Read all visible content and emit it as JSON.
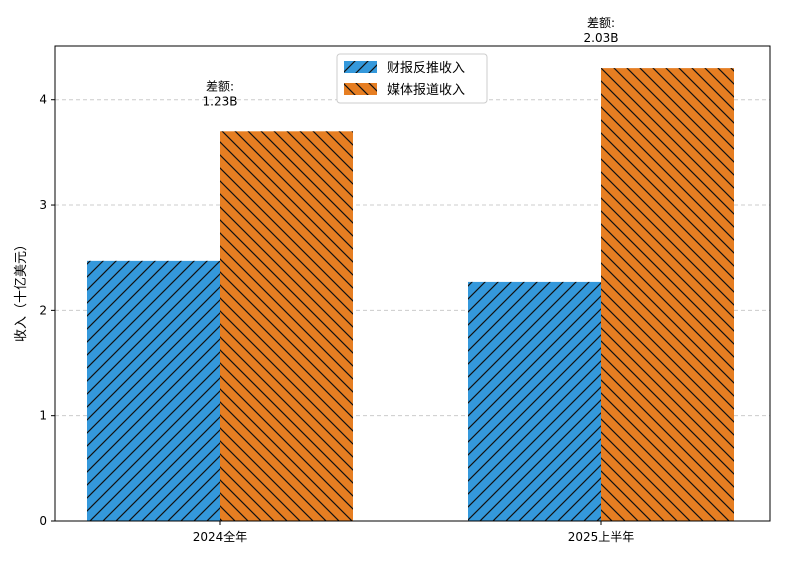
{
  "chart_data": {
    "type": "bar",
    "categories": [
      "2024全年",
      "2025上半年"
    ],
    "series": [
      {
        "name": "财报反推收入",
        "values": [
          2.47,
          2.27
        ],
        "color": "#3498db",
        "hatch": "/"
      },
      {
        "name": "媒体报道收入",
        "values": [
          3.7,
          4.3
        ],
        "color": "#e67e22",
        "hatch": "\\"
      }
    ],
    "annotations": [
      {
        "line1": "差额:",
        "line2": "1.23B"
      },
      {
        "line1": "差额:",
        "line2": "2.03B"
      }
    ],
    "xlabel": "",
    "ylabel": "收入（十亿美元）",
    "ylim": [
      0,
      4.51
    ],
    "yticks": [
      "0",
      "1",
      "2",
      "3",
      "4"
    ],
    "grid": "y-dashed",
    "legend": "top-center"
  }
}
